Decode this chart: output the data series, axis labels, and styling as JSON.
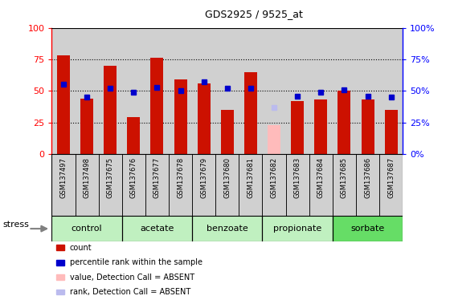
{
  "title": "GDS2925 / 9525_at",
  "samples": [
    "GSM137497",
    "GSM137498",
    "GSM137675",
    "GSM137676",
    "GSM137677",
    "GSM137678",
    "GSM137679",
    "GSM137680",
    "GSM137681",
    "GSM137682",
    "GSM137683",
    "GSM137684",
    "GSM137685",
    "GSM137686",
    "GSM137687"
  ],
  "count_values": [
    78,
    44,
    70,
    29,
    76,
    59,
    56,
    35,
    65,
    23,
    42,
    43,
    50,
    43,
    35
  ],
  "count_absent": [
    false,
    false,
    false,
    false,
    false,
    false,
    false,
    false,
    false,
    true,
    false,
    false,
    false,
    false,
    false
  ],
  "percentile_values": [
    55,
    45,
    52,
    49,
    53,
    50,
    57,
    52,
    52,
    37,
    46,
    49,
    51,
    46,
    45
  ],
  "percentile_absent": [
    false,
    false,
    false,
    false,
    false,
    false,
    false,
    false,
    false,
    true,
    false,
    false,
    false,
    false,
    false
  ],
  "groups": [
    {
      "name": "control",
      "indices": [
        0,
        1,
        2
      ],
      "color": "#c0f0c0"
    },
    {
      "name": "acetate",
      "indices": [
        3,
        4,
        5
      ],
      "color": "#c0f0c0"
    },
    {
      "name": "benzoate",
      "indices": [
        6,
        7,
        8
      ],
      "color": "#c0f0c0"
    },
    {
      "name": "propionate",
      "indices": [
        9,
        10,
        11
      ],
      "color": "#c0f0c0"
    },
    {
      "name": "sorbate",
      "indices": [
        12,
        13,
        14
      ],
      "color": "#66dd66"
    }
  ],
  "bar_color": "#cc1100",
  "bar_absent_color": "#ffbbbb",
  "dot_color": "#0000cc",
  "dot_absent_color": "#bbbbee",
  "ylim": [
    0,
    100
  ],
  "yticks": [
    0,
    25,
    50,
    75,
    100
  ],
  "col_bg_color": "#d0d0d0",
  "plot_bg_color": "#ffffff",
  "stress_label": "stress",
  "legend_items": [
    {
      "label": "count",
      "color": "#cc1100"
    },
    {
      "label": "percentile rank within the sample",
      "color": "#0000cc"
    },
    {
      "label": "value, Detection Call = ABSENT",
      "color": "#ffbbbb"
    },
    {
      "label": "rank, Detection Call = ABSENT",
      "color": "#bbbbee"
    }
  ]
}
